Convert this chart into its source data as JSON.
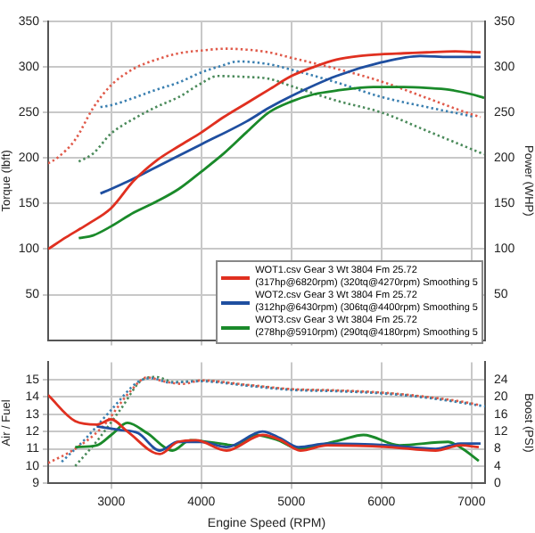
{
  "chart_data": [
    {
      "type": "line",
      "ylabel": "Torque (lbft)",
      "y2label": "Power (WHP)",
      "xlim": [
        2300,
        7150
      ],
      "xticks": [
        3000,
        4000,
        5000,
        6000,
        7000
      ],
      "ylim": [
        0,
        350
      ],
      "yticks": [
        50,
        100,
        150,
        200,
        250,
        300,
        350
      ],
      "y2lim": [
        0,
        350
      ],
      "y2ticks": [
        50,
        100,
        150,
        200,
        250,
        300,
        350
      ],
      "tick_labels": "y",
      "grid": true,
      "marker": "none",
      "legend": "bottom right",
      "series": [
        {
          "name": "WOT1.csv Gear 3 Wt 3804 Fm 25.72 (317hp@6820rpm) (320tq@4270rpm) Smoothing 5",
          "color": "#e03020",
          "axis": "y2",
          "line_style": "solid",
          "x": [
            2300,
            2500,
            2750,
            3000,
            3250,
            3500,
            3750,
            4000,
            4250,
            4500,
            4750,
            5000,
            5250,
            5500,
            5750,
            6000,
            6250,
            6500,
            6820,
            7100
          ],
          "values": [
            100,
            113,
            128,
            145,
            175,
            197,
            213,
            228,
            245,
            260,
            275,
            290,
            300,
            308,
            312,
            314,
            315,
            316,
            317,
            316
          ]
        },
        {
          "name": "WOT2.csv Gear 3 Wt 3804 Fm 25.72 (312hp@6430rpm) (306tq@4400rpm) Smoothing 5",
          "color": "#1f4fa0",
          "axis": "y2",
          "line_style": "solid",
          "x": [
            2880,
            3000,
            3180,
            3500,
            4000,
            4500,
            4750,
            5000,
            5500,
            6000,
            6430,
            6750,
            7100
          ],
          "values": [
            161,
            166,
            174,
            190,
            215,
            240,
            255,
            268,
            290,
            305,
            312,
            311,
            311
          ]
        },
        {
          "name": "WOT3.csv Gear 3 Wt 3804 Fm 25.72 (278hp@5910rpm) (290tq@4180rpm) Smoothing 5",
          "color": "#1a8a2a",
          "axis": "y2",
          "line_style": "solid",
          "x": [
            2640,
            2800,
            3000,
            3250,
            3500,
            3750,
            4000,
            4250,
            4500,
            4750,
            5000,
            5250,
            5500,
            5910,
            6250,
            6500,
            6750,
            7000,
            7140
          ],
          "values": [
            112,
            115,
            125,
            140,
            152,
            166,
            185,
            205,
            228,
            250,
            262,
            270,
            274,
            278,
            278,
            277,
            275,
            270,
            266
          ]
        },
        {
          "color": "#e05a4a",
          "axis": "y",
          "line_style": "dotted",
          "x": [
            2300,
            2400,
            2600,
            2800,
            3000,
            3250,
            3500,
            3750,
            4000,
            4270,
            4500,
            4750,
            5000,
            5500,
            6000,
            6500,
            7000,
            7100
          ],
          "values": [
            194,
            200,
            220,
            255,
            280,
            298,
            308,
            315,
            318,
            320,
            319,
            316,
            310,
            298,
            284,
            266,
            248,
            245
          ]
        },
        {
          "color": "#3a7fb0",
          "axis": "y",
          "line_style": "dotted",
          "x": [
            2880,
            3000,
            3250,
            3500,
            3750,
            4000,
            4250,
            4400,
            4750,
            5000,
            5500,
            6000,
            6500,
            7040
          ],
          "values": [
            256,
            258,
            266,
            275,
            283,
            294,
            302,
            306,
            303,
            297,
            283,
            267,
            256,
            245
          ]
        },
        {
          "color": "#4a8a5a",
          "axis": "y",
          "line_style": "dotted",
          "x": [
            2640,
            2800,
            3000,
            3250,
            3500,
            3750,
            4000,
            4180,
            4500,
            4750,
            5000,
            5500,
            6000,
            6500,
            7140
          ],
          "values": [
            196,
            205,
            227,
            243,
            256,
            267,
            282,
            290,
            289,
            287,
            279,
            263,
            250,
            230,
            204
          ]
        }
      ]
    },
    {
      "type": "line",
      "xlabel": "Engine Speed (RPM)",
      "ylabel": "Air / Fuel",
      "y2label": "Boost (PSI)",
      "xlim": [
        2300,
        7150
      ],
      "xticks": [
        3000,
        4000,
        5000,
        6000,
        7000
      ],
      "ylim": [
        9,
        16
      ],
      "yticks": [
        9,
        10,
        11,
        12,
        13,
        14,
        15
      ],
      "y2lim": [
        0,
        28
      ],
      "y2ticks": [
        0,
        4,
        8,
        12,
        16,
        20,
        24
      ],
      "grid": true,
      "marker": "none",
      "series": [
        {
          "color": "#e03020",
          "axis": "y",
          "line_style": "solid",
          "x": [
            2300,
            2600,
            2840,
            3000,
            3180,
            3540,
            3740,
            3940,
            4280,
            4680,
            4880,
            5100,
            5400,
            6080,
            6600,
            6880,
            7080
          ],
          "values": [
            14.1,
            12.6,
            12.4,
            12.7,
            12,
            10.7,
            11.4,
            11.5,
            10.9,
            11.8,
            11.5,
            10.9,
            11.2,
            11.1,
            10.9,
            11.2,
            11.1
          ]
        },
        {
          "color": "#1f4fa0",
          "axis": "y",
          "line_style": "solid",
          "x": [
            2840,
            3080,
            3300,
            3540,
            3740,
            4000,
            4280,
            4680,
            4880,
            5080,
            5400,
            6080,
            6600,
            6880,
            7100
          ],
          "values": [
            12.3,
            12.1,
            11.9,
            10.9,
            11.4,
            11.4,
            11.1,
            12,
            11.6,
            11.1,
            11.3,
            11.2,
            11,
            11.3,
            11.3
          ]
        },
        {
          "color": "#1a8a2a",
          "axis": "y",
          "line_style": "solid",
          "x": [
            2600,
            2840,
            3000,
            3180,
            3400,
            3680,
            3880,
            4400,
            4600,
            4850,
            5080,
            5540,
            5800,
            6200,
            6740,
            6900,
            7080
          ],
          "values": [
            11.1,
            11.2,
            11.8,
            12.5,
            11.9,
            10.9,
            11.5,
            11.2,
            11.8,
            11.5,
            11,
            11.5,
            11.8,
            11.2,
            11.4,
            11,
            10.3
          ]
        },
        {
          "color": "#e05a4a",
          "axis": "y2",
          "line_style": "dotted",
          "x": [
            2300,
            2600,
            2900,
            3200,
            3400,
            3600,
            3800,
            4000,
            4500,
            5000,
            5500,
            6000,
            6500,
            7000,
            7100
          ],
          "values": [
            4.7,
            8,
            13,
            21,
            24.5,
            23.5,
            23,
            23.8,
            22.8,
            21.8,
            21.5,
            21,
            20,
            18.5,
            18
          ]
        },
        {
          "color": "#3a7fb0",
          "axis": "y2",
          "line_style": "dotted",
          "x": [
            2450,
            2700,
            3000,
            3300,
            3450,
            3650,
            4000,
            4500,
            5000,
            5500,
            6000,
            6500,
            7000,
            7150
          ],
          "values": [
            5,
            10,
            17,
            23.5,
            24.3,
            23.3,
            23.6,
            22.6,
            21.6,
            21.3,
            20.8,
            19.8,
            18.3,
            17.8
          ]
        },
        {
          "color": "#4a8a5a",
          "axis": "y2",
          "line_style": "dotted",
          "x": [
            2600,
            2850,
            3100,
            3350,
            3500,
            3700,
            4000,
            4500,
            5000,
            5500,
            6000,
            6500,
            7000
          ],
          "values": [
            4,
            10,
            17,
            24,
            24.6,
            23.4,
            23.7,
            22.7,
            21.7,
            21.4,
            20.9,
            19.9,
            18.4
          ]
        }
      ]
    }
  ]
}
